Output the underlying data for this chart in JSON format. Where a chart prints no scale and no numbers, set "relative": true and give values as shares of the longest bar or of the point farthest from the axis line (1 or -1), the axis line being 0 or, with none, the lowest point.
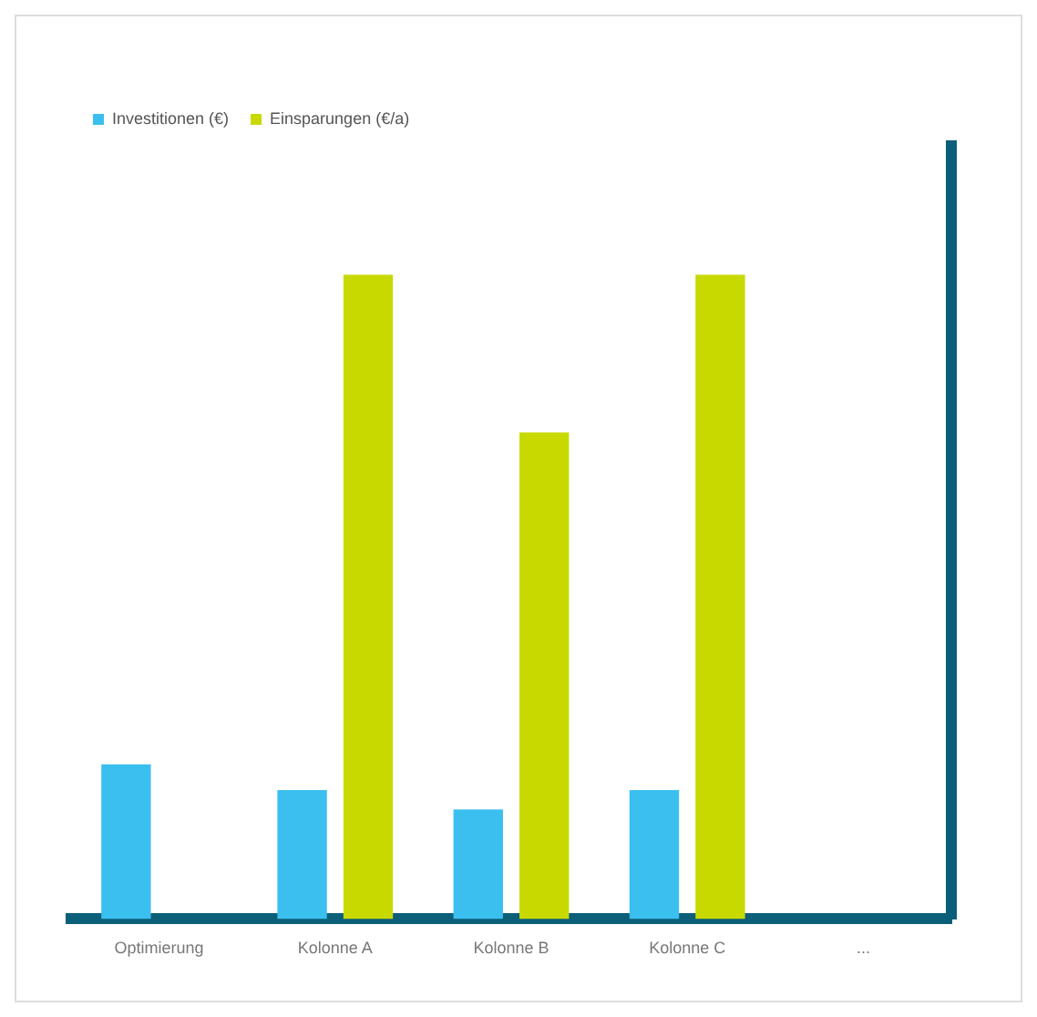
{
  "chart_data": {
    "type": "bar",
    "relative": true,
    "categories": [
      "Optimierung",
      "Kolonne A",
      "Kolonne B",
      "Kolonne C",
      "..."
    ],
    "series": [
      {
        "name": "Investitionen (€)",
        "color": "#3bbfef",
        "values": [
          0.24,
          0.2,
          0.17,
          0.2,
          null
        ]
      },
      {
        "name": "Einsparungen (€/a)",
        "color": "#c8d900",
        "values": [
          null,
          1,
          0.755,
          1,
          null
        ]
      }
    ],
    "legend": "top left"
  }
}
